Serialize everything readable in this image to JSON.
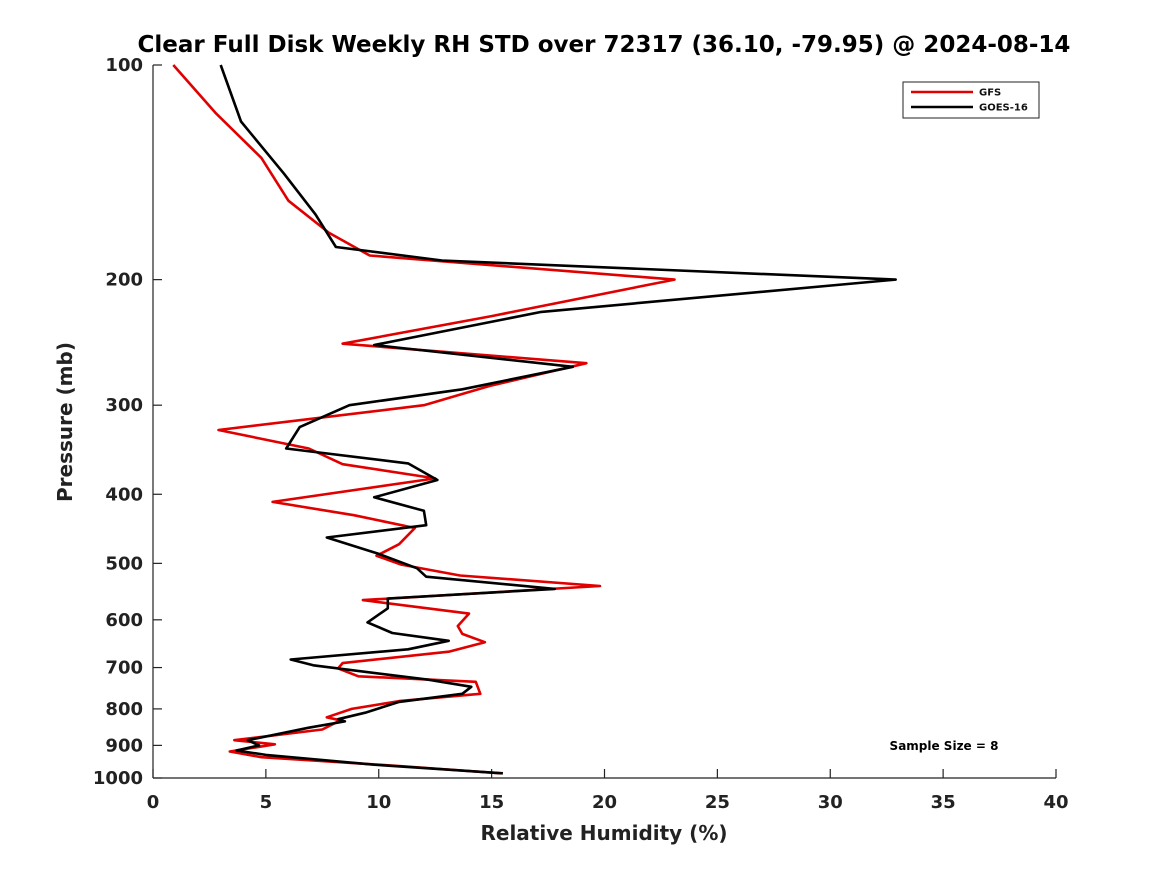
{
  "chart_data": {
    "type": "line",
    "title": "Clear Full Disk Weekly RH STD over 72317 (36.10, -79.95) @ 2024-08-14",
    "xlabel": "Relative Humidity (%)",
    "ylabel": "Pressure (mb)",
    "xlim": [
      0,
      40
    ],
    "ylim": [
      1000,
      100
    ],
    "y_scale": "log",
    "x_ticks": [
      0,
      5,
      10,
      15,
      20,
      25,
      30,
      35,
      40
    ],
    "y_ticks": [
      100,
      200,
      300,
      400,
      500,
      600,
      700,
      800,
      900,
      1000
    ],
    "grid": false,
    "legend_position": "top-right",
    "annotation": "Sample Size = 8",
    "series": [
      {
        "name": "GFS",
        "color": "#e00000",
        "points": [
          [
            0.9,
            100
          ],
          [
            2.8,
            117
          ],
          [
            4.8,
            135
          ],
          [
            6.0,
            155
          ],
          [
            7.8,
            172
          ],
          [
            9.6,
            185
          ],
          [
            23.1,
            200
          ],
          [
            15.0,
            225
          ],
          [
            8.4,
            246
          ],
          [
            19.2,
            262
          ],
          [
            14.9,
            282
          ],
          [
            12.0,
            300
          ],
          [
            2.9,
            325
          ],
          [
            6.9,
            345
          ],
          [
            8.4,
            363
          ],
          [
            12.5,
            380
          ],
          [
            5.3,
            410
          ],
          [
            8.9,
            428
          ],
          [
            11.6,
            446
          ],
          [
            10.9,
            470
          ],
          [
            9.9,
            488
          ],
          [
            11.0,
            502
          ],
          [
            13.6,
            520
          ],
          [
            19.8,
            538
          ],
          [
            9.3,
            563
          ],
          [
            14.0,
            588
          ],
          [
            13.5,
            612
          ],
          [
            13.7,
            628
          ],
          [
            14.7,
            645
          ],
          [
            13.1,
            665
          ],
          [
            8.4,
            690
          ],
          [
            8.2,
            702
          ],
          [
            9.1,
            720
          ],
          [
            14.3,
            733
          ],
          [
            14.5,
            762
          ],
          [
            10.9,
            780
          ],
          [
            8.8,
            800
          ],
          [
            7.7,
            822
          ],
          [
            8.3,
            830
          ],
          [
            7.5,
            855
          ],
          [
            3.6,
            885
          ],
          [
            5.4,
            897
          ],
          [
            3.4,
            918
          ],
          [
            4.8,
            935
          ],
          [
            10.9,
            962
          ],
          [
            15.4,
            985
          ]
        ]
      },
      {
        "name": "GOES-16",
        "color": "#000000",
        "points": [
          [
            3.0,
            100
          ],
          [
            3.9,
            120
          ],
          [
            5.8,
            142
          ],
          [
            7.2,
            162
          ],
          [
            8.1,
            180
          ],
          [
            12.8,
            188
          ],
          [
            32.9,
            200
          ],
          [
            17.2,
            222
          ],
          [
            9.8,
            247
          ],
          [
            18.6,
            265
          ],
          [
            13.7,
            285
          ],
          [
            8.7,
            300
          ],
          [
            6.5,
            322
          ],
          [
            5.9,
            345
          ],
          [
            11.3,
            362
          ],
          [
            12.6,
            382
          ],
          [
            9.8,
            404
          ],
          [
            12.0,
            422
          ],
          [
            12.1,
            442
          ],
          [
            7.7,
            460
          ],
          [
            10.0,
            485
          ],
          [
            11.7,
            508
          ],
          [
            12.1,
            522
          ],
          [
            17.8,
            543
          ],
          [
            10.4,
            560
          ],
          [
            10.4,
            578
          ],
          [
            9.5,
            605
          ],
          [
            10.6,
            626
          ],
          [
            13.1,
            642
          ],
          [
            11.3,
            660
          ],
          [
            6.1,
            682
          ],
          [
            7.1,
            695
          ],
          [
            12.2,
            728
          ],
          [
            14.1,
            745
          ],
          [
            13.7,
            762
          ],
          [
            10.9,
            782
          ],
          [
            9.4,
            810
          ],
          [
            8.2,
            827
          ],
          [
            8.5,
            833
          ],
          [
            6.9,
            850
          ],
          [
            4.2,
            885
          ],
          [
            4.7,
            900
          ],
          [
            3.7,
            915
          ],
          [
            5.0,
            928
          ],
          [
            9.8,
            958
          ],
          [
            15.5,
            985
          ]
        ]
      }
    ]
  }
}
